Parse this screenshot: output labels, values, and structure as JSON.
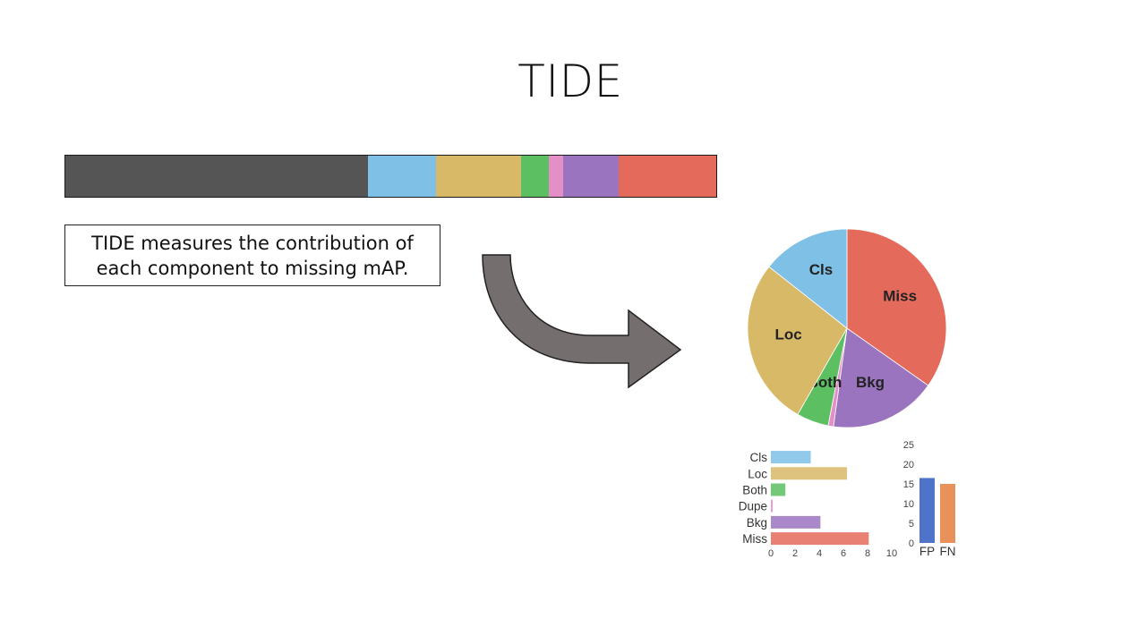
{
  "slide": {
    "title": "TIDE",
    "callout_lines": [
      "TIDE measures the contribution of",
      "each component to missing mAP."
    ]
  },
  "colors": {
    "mAP": "#555555",
    "Cls": "#7ec0e6",
    "Loc": "#d8b967",
    "Both": "#5cbf61",
    "Dupe": "#e58fc9",
    "Bkg": "#9a74bf",
    "Miss": "#e46a5c",
    "FP": "#4d74c9",
    "FN": "#e8915a",
    "arrow": "#756e6e"
  },
  "chart_data": [
    {
      "type": "bar",
      "orientation": "stacked-horizontal",
      "categories": [
        "mAP",
        "Cls",
        "Loc",
        "Both",
        "Dupe",
        "Bkg",
        "Miss"
      ],
      "values": [
        46.5,
        10.5,
        13,
        4.3,
        2.2,
        8.5,
        15
      ]
    },
    {
      "type": "pie",
      "labels": [
        "Miss",
        "Bkg",
        "Dupe",
        "Both",
        "Loc",
        "Cls"
      ],
      "values": [
        8,
        4,
        0.2,
        1.2,
        6.3,
        3.3
      ],
      "printed_labels": [
        "Miss",
        "Bkg",
        "",
        "Both",
        "Loc",
        "Cls"
      ]
    },
    {
      "type": "bar",
      "orientation": "horizontal",
      "categories": [
        "Cls",
        "Loc",
        "Both",
        "Dupe",
        "Bkg",
        "Miss"
      ],
      "values": [
        3.3,
        6.3,
        1.2,
        0.15,
        4.1,
        8.1
      ],
      "xlim": [
        0,
        10
      ],
      "xticks": [
        "0",
        "2",
        "4",
        "6",
        "8",
        "10"
      ]
    },
    {
      "type": "bar",
      "orientation": "vertical",
      "categories": [
        "FP",
        "FN"
      ],
      "values": [
        16.5,
        15
      ],
      "ylim": [
        0,
        25
      ],
      "yticks": [
        "0",
        "5",
        "10",
        "15",
        "20",
        "25"
      ]
    }
  ]
}
